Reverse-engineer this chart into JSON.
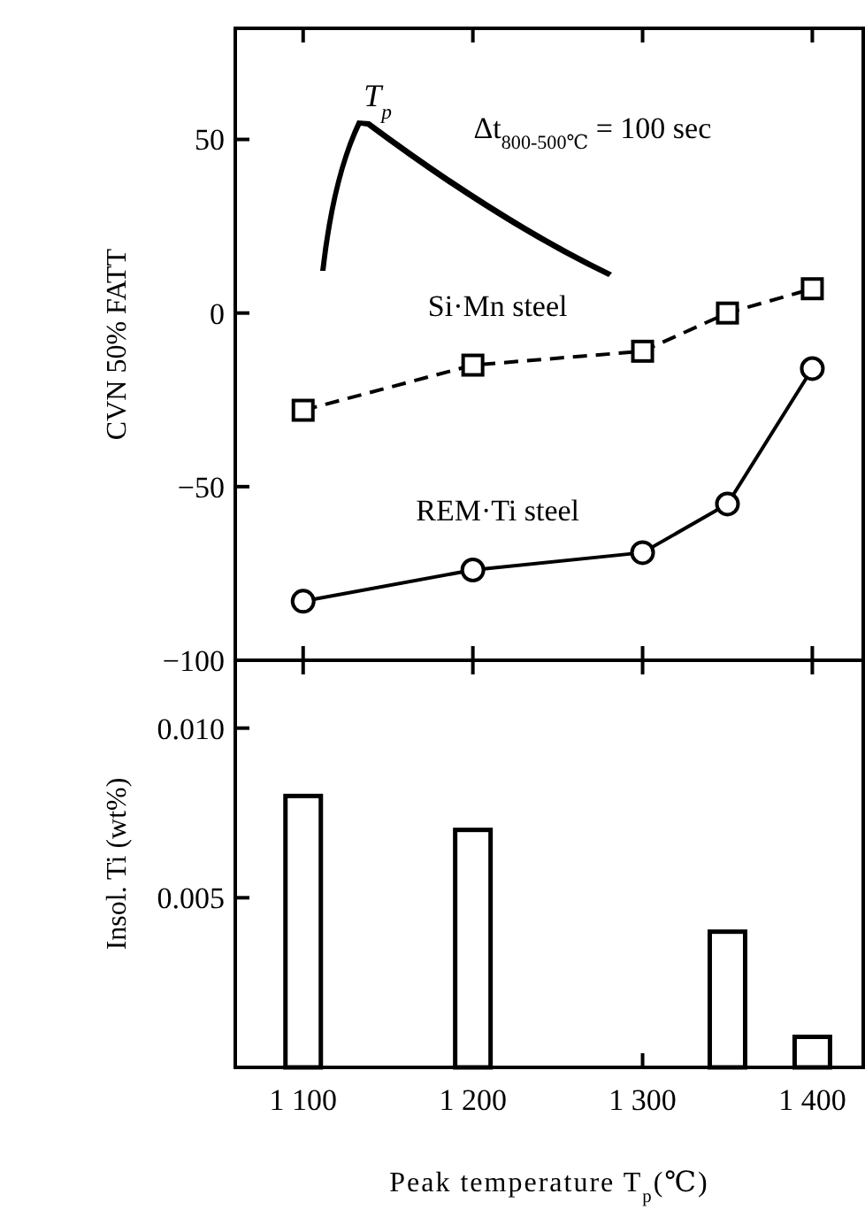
{
  "chart_data": [
    {
      "type": "line",
      "ylabel": "CVN 50% FATT",
      "x": [
        1100,
        1200,
        1300,
        1350,
        1400
      ],
      "xlim": [
        1060,
        1430
      ],
      "xticks": [
        1100,
        1200,
        1300,
        1400
      ],
      "ylim": [
        -100,
        82
      ],
      "yticks": [
        50,
        0,
        {
          "value": -50,
          "label": "−50"
        },
        {
          "value": -100,
          "label": "−100"
        }
      ],
      "tick_labels": "y",
      "grid": false,
      "series": [
        {
          "name": "Si·Mn steel",
          "color": "#000000",
          "values": [
            -28,
            -15,
            -11,
            0,
            7
          ],
          "marker": "square",
          "line_style": "dashed"
        },
        {
          "name": "REM·Ti steel",
          "color": "#000000",
          "values": [
            -83,
            -74,
            -69,
            -55,
            -16
          ],
          "marker": "circle",
          "line_style": "solid"
        }
      ],
      "annotations": [
        "T$_{p}$",
        "Δt$_{800-500℃}$ = 100 sec"
      ]
    },
    {
      "type": "bar",
      "ylabel": "Insol. Ti (wt%)",
      "xlabel": "Peak temperature T$_{p}$(℃)",
      "x": [
        1100,
        1200,
        1350,
        1400
      ],
      "values": [
        0.008,
        0.007,
        0.004,
        0.0009
      ],
      "color": "#000000",
      "xlim": [
        1060,
        1430
      ],
      "xticks": [
        {
          "value": 1100,
          "label": "1 100"
        },
        {
          "value": 1200,
          "label": "1 200"
        },
        {
          "value": 1300,
          "label": "1 300"
        },
        {
          "value": 1400,
          "label": "1 400"
        }
      ],
      "ylim": [
        0,
        0.012
      ],
      "yticks": [
        0.005,
        {
          "value": 0.01,
          "label": "0.010"
        }
      ],
      "grid": false
    }
  ]
}
